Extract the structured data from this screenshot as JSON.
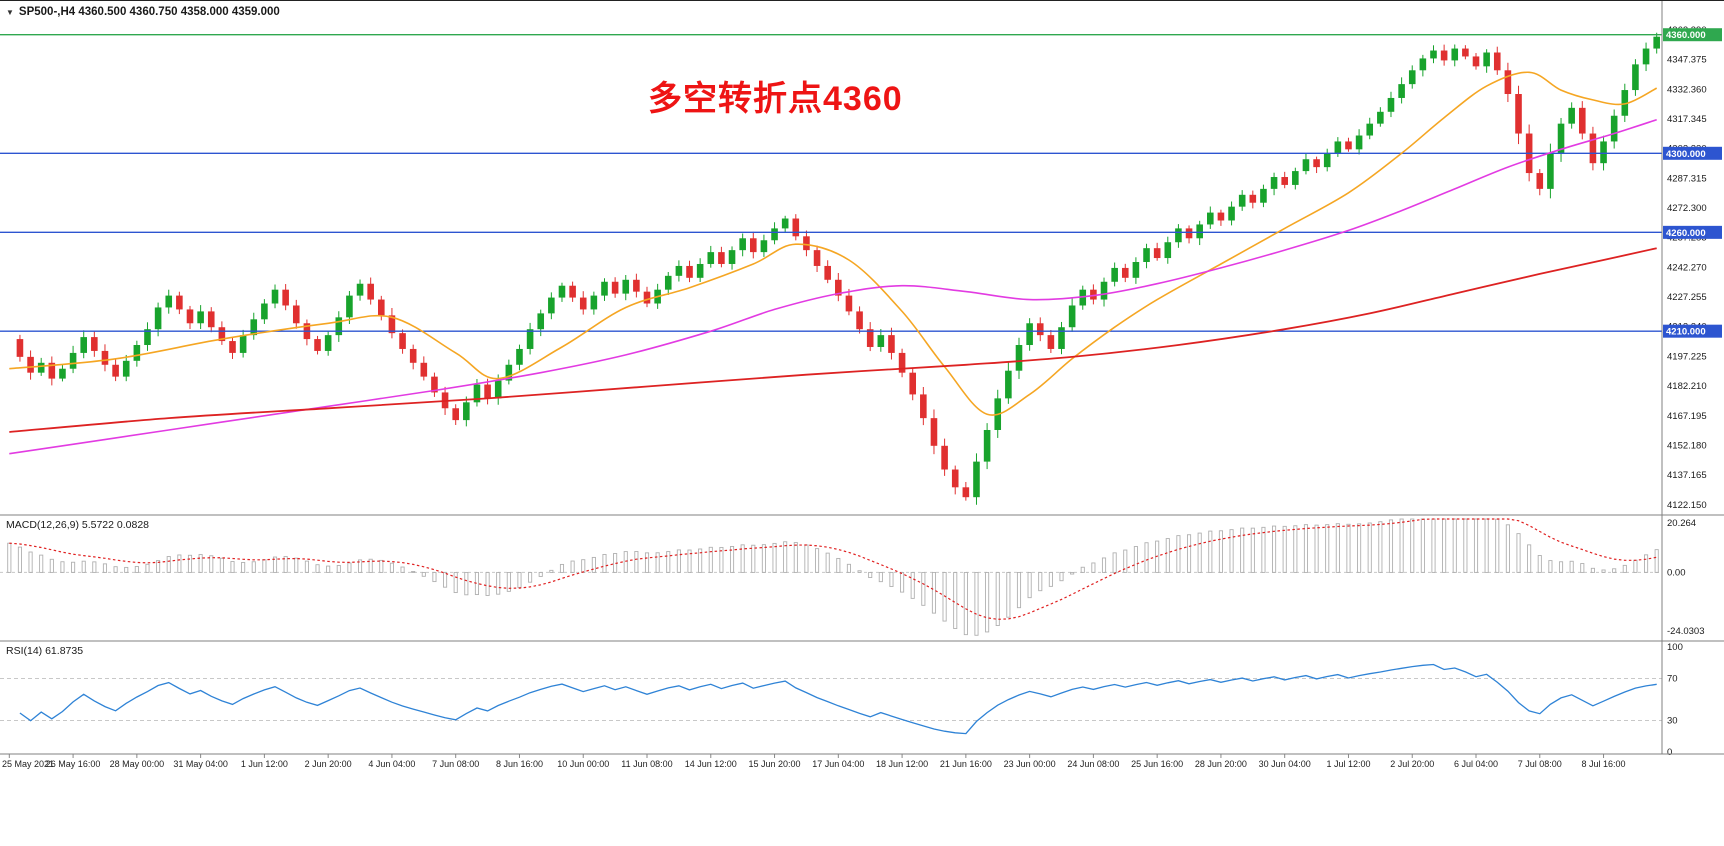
{
  "header": {
    "dropdown_icon": "▼",
    "text": "SP500-,H4 4360.500 4360.750 4358.000 4359.000",
    "symbol": "SP500-",
    "timeframe": "H4",
    "open": "4360.500",
    "high": "4360.750",
    "low": "4358.000",
    "close": "4359.000"
  },
  "annotation": {
    "text": "多空转折点4360",
    "color": "#ee1414"
  },
  "colors": {
    "candle_up": "#18a32c",
    "candle_down": "#e03030",
    "ma_fast": "#f5a623",
    "ma_mid": "#e23be2",
    "ma_slow": "#dd2222",
    "level_green": "#2fa84f",
    "level_blue": "#2d55d0",
    "macd_hist": "#b0b0b0",
    "macd_signal": "#e02020",
    "rsi_line": "#2f83d6",
    "grid": "#c8c8c8",
    "axis_text": "#1a1a1a",
    "separator": "#808080"
  },
  "levels": [
    {
      "price": 4360,
      "label": "4360.000",
      "color": "#2fa84f"
    },
    {
      "price": 4300,
      "label": "4300.000",
      "color": "#2d55d0"
    },
    {
      "price": 4260,
      "label": "4260.000",
      "color": "#2d55d0"
    },
    {
      "price": 4210,
      "label": "4210.000",
      "color": "#2d55d0"
    }
  ],
  "chart_data": [
    {
      "type": "candlestick",
      "title": "SP500-,H4",
      "ohlc_display": {
        "open": "4360.500",
        "high": "4360.750",
        "low": "4358.000",
        "close": "4359.000"
      },
      "y_range": [
        4118,
        4372
      ],
      "y_ticks": [
        "4362.390",
        "4347.375",
        "4332.360",
        "4317.345",
        "4302.330",
        "4287.315",
        "4272.300",
        "4257.285",
        "4242.270",
        "4227.255",
        "4212.240",
        "4197.225",
        "4182.210",
        "4167.195",
        "4152.180",
        "4137.165",
        "4122.150"
      ],
      "x_ticks": [
        "25 May 2021",
        "26 May 16:00",
        "28 May 00:00",
        "31 May 04:00",
        "1 Jun 12:00",
        "2 Jun 20:00",
        "4 Jun 04:00",
        "7 Jun 08:00",
        "8 Jun 16:00",
        "10 Jun 00:00",
        "11 Jun 08:00",
        "14 Jun 12:00",
        "15 Jun 20:00",
        "17 Jun 04:00",
        "18 Jun 12:00",
        "21 Jun 16:00",
        "23 Jun 00:00",
        "24 Jun 08:00",
        "25 Jun 16:00",
        "28 Jun 20:00",
        "30 Jun 04:00",
        "1 Jul 12:00",
        "2 Jul 20:00",
        "6 Jul 04:00",
        "7 Jul 08:00",
        "8 Jul 16:00"
      ],
      "bars_per_x_tick": 6,
      "closes": [
        4206,
        4197,
        4189,
        4194,
        4186,
        4191,
        4199,
        4207,
        4200,
        4193,
        4187,
        4195,
        4203,
        4211,
        4222,
        4228,
        4221,
        4214,
        4220,
        4212,
        4205,
        4199,
        4208,
        4216,
        4224,
        4231,
        4223,
        4214,
        4206,
        4200,
        4208,
        4217,
        4228,
        4234,
        4226,
        4218,
        4209,
        4201,
        4194,
        4187,
        4179,
        4171,
        4165,
        4174,
        4183,
        4176,
        4185,
        4193,
        4201,
        4211,
        4219,
        4227,
        4233,
        4227,
        4221,
        4228,
        4235,
        4229,
        4236,
        4230,
        4224,
        4231,
        4238,
        4243,
        4237,
        4244,
        4250,
        4244,
        4251,
        4257,
        4250,
        4256,
        4262,
        4267,
        4258,
        4251,
        4243,
        4236,
        4228,
        4220,
        4211,
        4202,
        4208,
        4199,
        4189,
        4178,
        4166,
        4152,
        4140,
        4131,
        4126,
        4144,
        4160,
        4176,
        4190,
        4203,
        4214,
        4208,
        4201,
        4212,
        4223,
        4231,
        4226,
        4235,
        4242,
        4237,
        4245,
        4252,
        4247,
        4255,
        4262,
        4257,
        4264,
        4270,
        4266,
        4273,
        4279,
        4275,
        4282,
        4288,
        4284,
        4291,
        4297,
        4293,
        4300,
        4306,
        4302,
        4309,
        4315,
        4321,
        4328,
        4335,
        4342,
        4348,
        4352,
        4347,
        4353,
        4349,
        4344,
        4351,
        4342,
        4330,
        4310,
        4290,
        4282,
        4300,
        4315,
        4323,
        4310,
        4295,
        4306,
        4319,
        4332,
        4345,
        4353,
        4359
      ],
      "moving_averages": [
        {
          "name": "fast-ma-orange",
          "color": "#f5a623",
          "keypoints": [
            [
              0,
              4191
            ],
            [
              10,
              4196
            ],
            [
              20,
              4206
            ],
            [
              30,
              4214
            ],
            [
              36,
              4217
            ],
            [
              42,
              4199
            ],
            [
              46,
              4186
            ],
            [
              52,
              4202
            ],
            [
              58,
              4222
            ],
            [
              64,
              4232
            ],
            [
              70,
              4244
            ],
            [
              74,
              4254
            ],
            [
              79,
              4246
            ],
            [
              84,
              4220
            ],
            [
              88,
              4192
            ],
            [
              92,
              4168
            ],
            [
              96,
              4178
            ],
            [
              100,
              4196
            ],
            [
              104,
              4212
            ],
            [
              108,
              4226
            ],
            [
              114,
              4244
            ],
            [
              120,
              4262
            ],
            [
              126,
              4280
            ],
            [
              131,
              4300
            ],
            [
              135,
              4318
            ],
            [
              139,
              4334
            ],
            [
              143,
              4341
            ],
            [
              146,
              4332
            ],
            [
              149,
              4327
            ],
            [
              152,
              4325
            ],
            [
              155,
              4333
            ]
          ]
        },
        {
          "name": "mid-ma-magenta",
          "color": "#e23be2",
          "keypoints": [
            [
              0,
              4148
            ],
            [
              10,
              4156
            ],
            [
              20,
              4164
            ],
            [
              30,
              4172
            ],
            [
              40,
              4180
            ],
            [
              50,
              4189
            ],
            [
              58,
              4198
            ],
            [
              66,
              4210
            ],
            [
              72,
              4221
            ],
            [
              78,
              4229
            ],
            [
              84,
              4233
            ],
            [
              90,
              4230
            ],
            [
              96,
              4226
            ],
            [
              102,
              4228
            ],
            [
              108,
              4234
            ],
            [
              114,
              4242
            ],
            [
              120,
              4251
            ],
            [
              126,
              4261
            ],
            [
              131,
              4271
            ],
            [
              136,
              4282
            ],
            [
              141,
              4293
            ],
            [
              146,
              4302
            ],
            [
              151,
              4310
            ],
            [
              155,
              4317
            ]
          ]
        },
        {
          "name": "slow-ma-red",
          "color": "#dd2222",
          "keypoints": [
            [
              0,
              4159
            ],
            [
              15,
              4166
            ],
            [
              30,
              4171
            ],
            [
              45,
              4176
            ],
            [
              60,
              4182
            ],
            [
              75,
              4188
            ],
            [
              90,
              4193
            ],
            [
              100,
              4197
            ],
            [
              110,
              4203
            ],
            [
              120,
              4211
            ],
            [
              128,
              4219
            ],
            [
              136,
              4229
            ],
            [
              144,
              4239
            ],
            [
              150,
              4246
            ],
            [
              155,
              4252
            ]
          ]
        }
      ]
    },
    {
      "type": "bar",
      "title": "MACD(12,26,9) 5.5722 0.0828",
      "indicator": "MACD",
      "params": [
        12,
        26,
        9
      ],
      "value": "5.5722",
      "signal_value": "0.0828",
      "y_ticks": [
        "20.264",
        "0.00",
        "-24.0303"
      ],
      "y_tick_values": [
        20.264,
        0,
        -24.0303
      ],
      "source": "closes"
    },
    {
      "type": "line",
      "title": "RSI(14) 61.8735",
      "indicator": "RSI",
      "period": 14,
      "value": "61.8735",
      "y_ticks": [
        "100",
        "70",
        "30",
        "0"
      ],
      "y_tick_values": [
        100,
        70,
        30,
        0
      ],
      "levels": [
        70,
        30
      ],
      "source": "closes"
    }
  ]
}
